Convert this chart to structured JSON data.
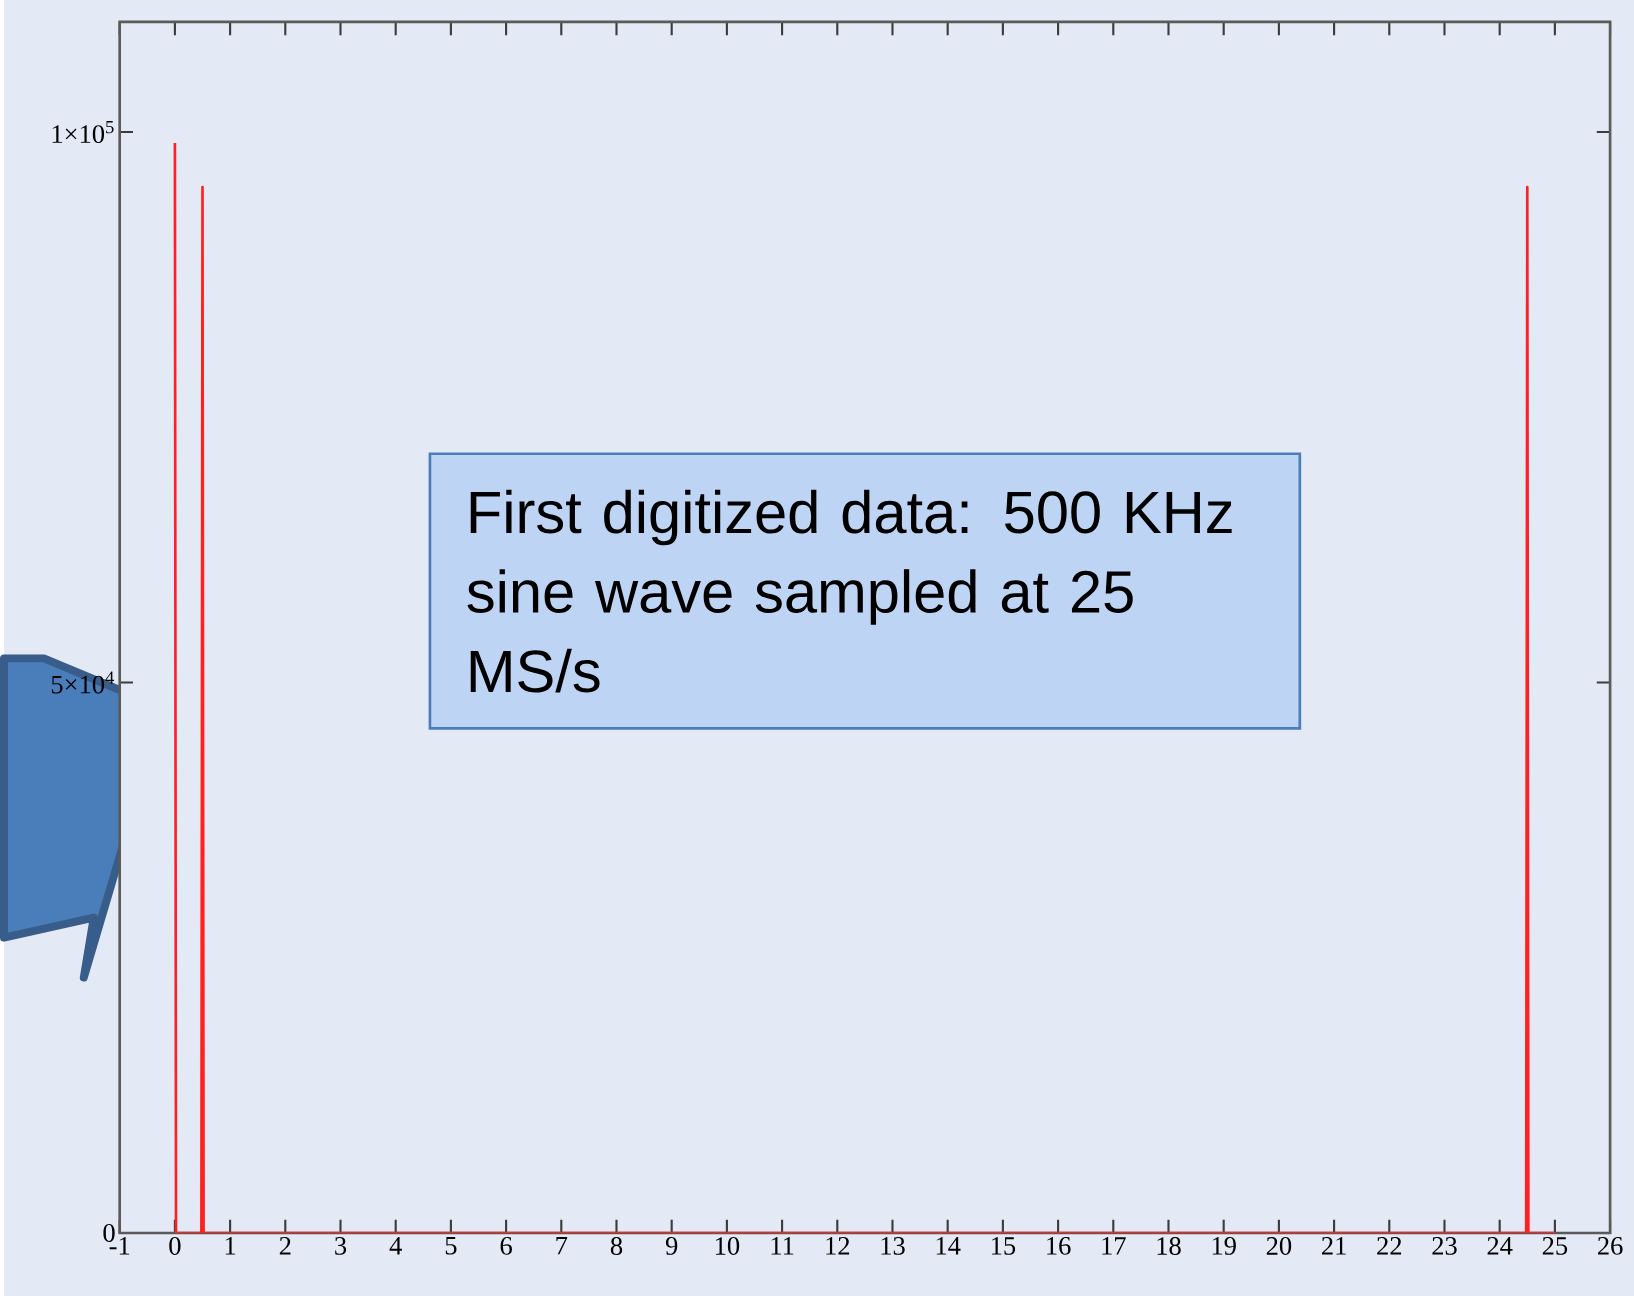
{
  "chart_data": {
    "type": "line",
    "x": [
      0,
      0.02,
      0.48,
      0.5,
      0.52,
      24.48,
      24.5,
      24.52,
      25
    ],
    "series": [
      {
        "color": "#ff2020",
        "values": [
          99000,
          0,
          0,
          95000,
          0,
          0,
          95000,
          0,
          0
        ]
      }
    ],
    "xlim": [
      -1,
      26
    ],
    "xticks": [
      -1,
      0,
      1,
      2,
      3,
      4,
      5,
      6,
      7,
      8,
      9,
      10,
      11,
      12,
      13,
      14,
      15,
      16,
      17,
      18,
      19,
      20,
      21,
      22,
      23,
      24,
      25,
      26
    ],
    "ylim": [
      0,
      110000
    ],
    "yticks": [
      0,
      {
        "value": 50000,
        "label": "5×10$^{4}$"
      },
      {
        "value": 100000,
        "label": "1×10$^{5}$"
      }
    ],
    "grid": false,
    "marker": "none",
    "line_style": "solid",
    "annotations": [
      "First digitized data: 500 KHz sine wave sampled at 25 MS/s"
    ]
  }
}
